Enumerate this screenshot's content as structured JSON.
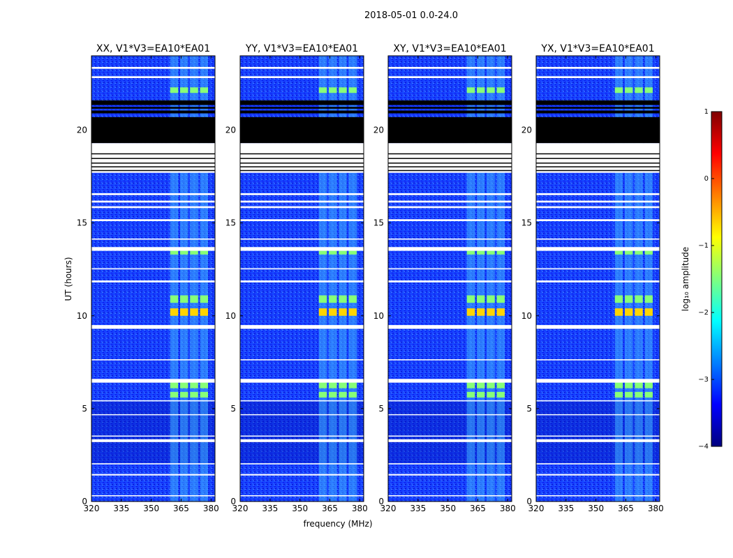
{
  "figure": {
    "suptitle": "2018-05-01 0.0-24.0",
    "xlabel": "frequency (MHz)",
    "ylabel": "UT (hours)"
  },
  "chart_data": {
    "type": "heatmap",
    "title": "2018-05-01 0.0-24.0",
    "xlabel": "frequency (MHz)",
    "ylabel": "UT (hours)",
    "xlim": [
      320,
      382
    ],
    "ylim": [
      0,
      24
    ],
    "xticks": [
      320,
      335,
      350,
      365,
      380
    ],
    "xtick_labels": [
      "320",
      "335",
      "350",
      "365",
      "380"
    ],
    "yticks": [
      0,
      5,
      10,
      15,
      20
    ],
    "ytick_labels": [
      "0",
      "5",
      "10",
      "15",
      "20"
    ],
    "panels": [
      {
        "title": "XX, V1*V3=EA10*EA01"
      },
      {
        "title": "YY, V1*V3=EA10*EA01"
      },
      {
        "title": "XY, V1*V3=EA10*EA01"
      },
      {
        "title": "YX, V1*V3=EA10*EA01"
      }
    ],
    "colorbar": {
      "label": "log₁₀ amplitude",
      "range": [
        -4,
        1
      ],
      "ticks": [
        1,
        0,
        -1,
        -2,
        -3,
        -4
      ],
      "tick_labels": [
        "1",
        "0",
        "−1",
        "−2",
        "−3",
        "−4"
      ],
      "colormap": [
        "#00007f",
        "#0000ff",
        "#007fff",
        "#00ffff",
        "#7fff7f",
        "#ffff00",
        "#ff7f00",
        "#ff0000",
        "#7f0000"
      ]
    },
    "rfi_band_mhz": [
      359,
      379
    ],
    "rfi_channels_mhz": [
      [
        359.5,
        363.5
      ],
      [
        364.5,
        368.5
      ],
      [
        369.5,
        373.5
      ],
      [
        374.5,
        378.5
      ]
    ],
    "flagged_black_hours": [
      [
        19.3,
        20.7
      ],
      [
        20.9,
        21.05
      ],
      [
        21.15,
        21.25
      ],
      [
        21.35,
        21.6
      ]
    ],
    "flagged_white_hours": [
      [
        17.7,
        19.3
      ],
      [
        0.28,
        0.34
      ],
      [
        1.4,
        1.48
      ],
      [
        2.0,
        2.06
      ],
      [
        3.2,
        3.35
      ],
      [
        3.5,
        3.55
      ],
      [
        4.65,
        4.7
      ],
      [
        5.4,
        5.45
      ],
      [
        6.4,
        6.6
      ],
      [
        7.6,
        7.66
      ],
      [
        9.3,
        9.5
      ],
      [
        11.8,
        11.9
      ],
      [
        12.5,
        12.56
      ],
      [
        13.5,
        13.7
      ],
      [
        14.1,
        14.16
      ],
      [
        15.1,
        15.2
      ],
      [
        15.8,
        15.9
      ],
      [
        16.1,
        16.2
      ],
      [
        16.5,
        16.6
      ],
      [
        22.8,
        22.9
      ],
      [
        23.3,
        23.4
      ]
    ],
    "bright_hours": [
      [
        10.0,
        10.4
      ],
      [
        6.1,
        6.5
      ],
      [
        5.6,
        5.9
      ],
      [
        13.3,
        13.5
      ],
      [
        22.0,
        22.3
      ],
      [
        10.7,
        11.1
      ]
    ]
  }
}
